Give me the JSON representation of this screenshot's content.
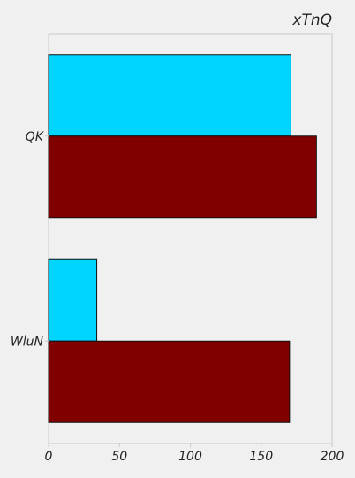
{
  "chart_data": {
    "type": "bar",
    "orientation": "horizontal",
    "title": "xTnQ",
    "xlabel": "",
    "ylabel": "",
    "categories": [
      "QK",
      "WluN"
    ],
    "series": [
      {
        "values": [
          171,
          34
        ],
        "color": "#00d5ff"
      },
      {
        "values": [
          189,
          170
        ],
        "color": "#800000"
      }
    ],
    "xlim": [
      0,
      200
    ],
    "xticks": [
      0,
      50,
      100,
      150,
      200
    ],
    "grid": false,
    "legend": "none"
  }
}
